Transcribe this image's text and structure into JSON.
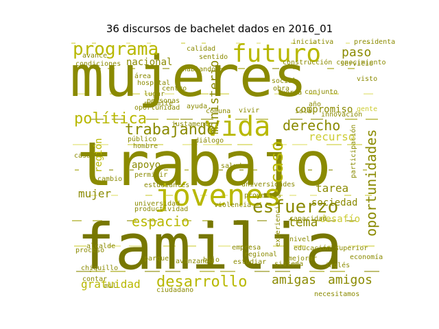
{
  "figure": {
    "title": "36 discursos de bachelet dados en 2016_01"
  },
  "palette": {
    "dark": "#777700",
    "olive": "#8a8a00",
    "mid": "#a0a000",
    "bright": "#b8b800",
    "light": "#cccc33",
    "pale": "#dede66"
  },
  "words": [
    {
      "text": "mujeres",
      "shade": "olive"
    },
    {
      "text": "trabajo",
      "shade": "olive"
    },
    {
      "text": "familia",
      "shade": "dark"
    },
    {
      "text": "vida",
      "shade": "bright"
    },
    {
      "text": "futuro",
      "shade": "bright"
    },
    {
      "text": "programa",
      "shade": "bright"
    },
    {
      "text": "jóvenes",
      "shade": "bright"
    },
    {
      "text": "política",
      "shade": "bright"
    },
    {
      "text": "trabajando",
      "shade": "olive"
    },
    {
      "text": "derecho",
      "shade": "olive"
    },
    {
      "text": "esfuerzo",
      "shade": "olive"
    },
    {
      "text": "desarrollo",
      "shade": "bright"
    },
    {
      "text": "espacio",
      "shade": "bright"
    },
    {
      "text": "oportunidades",
      "shade": "olive"
    },
    {
      "text": "amigas",
      "shade": "olive"
    },
    {
      "text": "amigos",
      "shade": "olive"
    },
    {
      "text": "caso",
      "shade": "bright"
    },
    {
      "text": "ministerio",
      "shade": "olive"
    },
    {
      "text": "gratuidad",
      "shade": "bright"
    },
    {
      "text": "paso",
      "shade": "olive"
    },
    {
      "text": "nacional",
      "shade": "olive"
    },
    {
      "text": "mujer",
      "shade": "olive"
    },
    {
      "text": "tarea",
      "shade": "olive"
    },
    {
      "text": "sociedad",
      "shade": "olive"
    },
    {
      "text": "recurso",
      "shade": "light"
    },
    {
      "text": "compromiso",
      "shade": "olive"
    },
    {
      "text": "apoyo",
      "shade": "olive"
    },
    {
      "text": "tema",
      "shade": "olive"
    },
    {
      "text": "desafío",
      "shade": "light"
    },
    {
      "text": "región",
      "shade": "bright"
    },
    {
      "text": "calidad",
      "shade": "olive"
    },
    {
      "text": "mil",
      "shade": "olive"
    },
    {
      "text": "universidad",
      "shade": "olive"
    },
    {
      "text": "estudiantes",
      "shade": "olive"
    },
    {
      "text": "productividad",
      "shade": "olive"
    },
    {
      "text": "violencia",
      "shade": "olive"
    },
    {
      "text": "proyectos",
      "shade": "olive"
    },
    {
      "text": "universidades",
      "shade": "olive"
    },
    {
      "text": "capacidad",
      "shade": "olive"
    },
    {
      "text": "educación superior",
      "shade": "olive"
    },
    {
      "text": "proceso",
      "shade": "olive"
    },
    {
      "text": "alcalde",
      "shade": "olive"
    },
    {
      "text": "contar",
      "shade": "olive"
    },
    {
      "text": "oportunidad",
      "shade": "olive"
    },
    {
      "text": "diálogo",
      "shade": "olive"
    },
    {
      "text": "salud",
      "shade": "olive"
    },
    {
      "text": "social",
      "shade": "olive"
    },
    {
      "text": "obra",
      "shade": "olive"
    },
    {
      "text": "centro",
      "shade": "olive"
    },
    {
      "text": "empresa",
      "shade": "olive"
    },
    {
      "text": "regional",
      "shade": "olive"
    },
    {
      "text": "estudiar",
      "shade": "olive"
    },
    {
      "text": "sistema",
      "shade": "olive"
    },
    {
      "text": "hijo",
      "shade": "olive"
    },
    {
      "text": "economía",
      "shade": "olive"
    },
    {
      "text": "mejorar",
      "shade": "olive"
    },
    {
      "text": "servicio",
      "shade": "olive"
    },
    {
      "text": "presidenta",
      "shade": "olive"
    },
    {
      "text": "conjunto",
      "shade": "olive"
    },
    {
      "text": "isla",
      "shade": "olive"
    },
    {
      "text": "fuerza",
      "shade": "olive"
    },
    {
      "text": "comuna",
      "shade": "olive"
    },
    {
      "text": "construcción conocimiento",
      "shade": "olive"
    },
    {
      "text": "iniciativa",
      "shade": "olive"
    },
    {
      "text": "hablando",
      "shade": "olive"
    },
    {
      "text": "avance",
      "shade": "olive"
    },
    {
      "text": "condiciones",
      "shade": "olive"
    },
    {
      "text": "permite",
      "shade": "olive"
    },
    {
      "text": "área",
      "shade": "olive"
    },
    {
      "text": "público",
      "shade": "olive"
    },
    {
      "text": "hombre",
      "shade": "olive"
    },
    {
      "text": "cambio",
      "shade": "olive"
    },
    {
      "text": "casa",
      "shade": "olive"
    },
    {
      "text": "permitir",
      "shade": "olive"
    },
    {
      "text": "justamente",
      "shade": "olive"
    },
    {
      "text": "vivir",
      "shade": "olive"
    },
    {
      "text": "nivel",
      "shade": "olive"
    },
    {
      "text": "inglés",
      "shade": "olive"
    },
    {
      "text": "gente",
      "shade": "light"
    },
    {
      "text": "innovación",
      "shade": "olive"
    },
    {
      "text": "año",
      "shade": "olive"
    },
    {
      "text": "necesitamos",
      "shade": "olive"
    },
    {
      "text": "ciudadano",
      "shade": "olive"
    },
    {
      "text": "parque",
      "shade": "olive"
    },
    {
      "text": "avanzando",
      "shade": "olive"
    },
    {
      "text": "chiquillo",
      "shade": "olive"
    },
    {
      "text": "visto",
      "shade": "olive"
    },
    {
      "text": "experiencia",
      "shade": "olive"
    },
    {
      "text": "participación",
      "shade": "olive"
    },
    {
      "text": "ayuda",
      "shade": "olive"
    },
    {
      "text": "sentido",
      "shade": "olive"
    },
    {
      "text": "hospital",
      "shade": "olive"
    },
    {
      "text": "lugar",
      "shade": "olive"
    },
    {
      "text": "personas",
      "shade": "olive"
    }
  ]
}
